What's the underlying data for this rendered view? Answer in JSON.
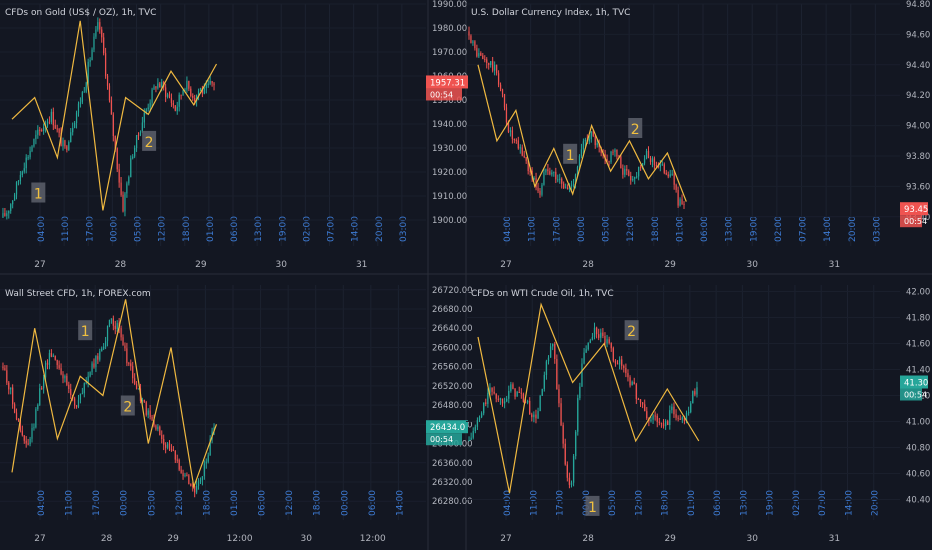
{
  "chart_data": [
    {
      "type": "candlestick",
      "title": "CFDs on Gold (US$ / OZ), 1h, TVC",
      "ylim": [
        1895,
        1990
      ],
      "y_ticks": [
        "1990.00",
        "1980.00",
        "1970.00",
        "1960.00",
        "1950.00",
        "1940.00",
        "1930.00",
        "1920.00",
        "1910.00",
        "1900.00"
      ],
      "time_ticks": [
        "04:00",
        "11:00",
        "17:00",
        "00:00",
        "05:00",
        "12:00",
        "18:00",
        "01:00",
        "06:00",
        "13:00",
        "19:00",
        "02:00",
        "07:00",
        "14:00",
        "20:00",
        "03:00"
      ],
      "date_ticks": [
        "27",
        "28",
        "29",
        "30",
        "31"
      ],
      "last_price": "1957.31",
      "countdown": "00:54",
      "last_color": "#ef5350",
      "wave_labels": [
        "1",
        "2"
      ],
      "start_value": 1901,
      "path_points": [
        1901,
        1904,
        1909,
        1915,
        1922,
        1926,
        1931,
        1935,
        1938,
        1941,
        1944,
        1939,
        1933,
        1929,
        1937,
        1943,
        1949,
        1956,
        1966,
        1975,
        1982,
        1969,
        1952,
        1936,
        1920,
        1905,
        1917,
        1928,
        1934,
        1941,
        1947,
        1952,
        1957,
        1956,
        1953,
        1950,
        1946,
        1952,
        1957,
        1954,
        1951,
        1955,
        1953,
        1956,
        1957
      ],
      "zigzag": [
        1942,
        1951,
        1926,
        1983,
        1904,
        1951,
        1944,
        1962,
        1948,
        1965
      ],
      "data_end_fraction": 0.5
    },
    {
      "type": "candlestick",
      "title": "U.S. Dollar Currency Index, 1h, TVC",
      "ylim": [
        93.3,
        94.8
      ],
      "y_ticks": [
        "94.80",
        "94.60",
        "94.40",
        "94.20",
        "94.00",
        "93.80",
        "93.60",
        "93.40"
      ],
      "time_ticks": [
        "04:00",
        "11:00",
        "17:00",
        "00:00",
        "05:00",
        "12:00",
        "18:00",
        "01:00",
        "06:00",
        "13:00",
        "19:00",
        "02:00",
        "07:00",
        "14:00",
        "20:00",
        "03:00"
      ],
      "date_ticks": [
        "27",
        "28",
        "29",
        "30",
        "31"
      ],
      "last_price": "93.45",
      "countdown": "00:54",
      "last_color": "#ef5350",
      "wave_labels": [
        "1",
        "2"
      ],
      "start_value": 94.62,
      "path_points": [
        94.62,
        94.5,
        94.45,
        94.42,
        94.4,
        94.35,
        94.2,
        94.0,
        93.9,
        93.85,
        93.8,
        93.7,
        93.62,
        93.55,
        93.75,
        93.7,
        93.66,
        93.6,
        93.58,
        93.65,
        93.78,
        93.9,
        93.95,
        93.88,
        93.8,
        93.75,
        93.85,
        93.78,
        93.7,
        93.68,
        93.65,
        93.75,
        93.8,
        93.78,
        93.75,
        93.72,
        93.7,
        93.65,
        93.5,
        93.45
      ],
      "zigzag": [
        94.4,
        93.9,
        94.1,
        93.6,
        93.85,
        93.55,
        94.0,
        93.7,
        93.9,
        93.65,
        93.82,
        93.5
      ],
      "data_end_fraction": 0.5
    },
    {
      "type": "candlestick",
      "title": "Wall Street CFD, 1h, FOREX.com",
      "ylim": [
        26270,
        26730
      ],
      "y_ticks": [
        "26720.00",
        "26680.00",
        "26640.00",
        "26600.00",
        "26560.00",
        "26520.00",
        "26480.00",
        "26440.00",
        "26400.00",
        "26360.00",
        "26320.00",
        "26280.00"
      ],
      "time_ticks": [
        "04:00",
        "11:00",
        "17:00",
        "00:00",
        "05:00",
        "12:00",
        "18:00",
        "01:00",
        "06:00",
        "12:00",
        "18:00",
        "00:00",
        "06:00",
        "14:00"
      ],
      "date_ticks": [
        "27",
        "28",
        "29",
        "12:00",
        "30",
        "12:00"
      ],
      "last_price": "26434.0",
      "countdown": "00:54",
      "last_color": "#26a69a",
      "wave_labels": [
        "1",
        "2"
      ],
      "start_value": 26560,
      "path_points": [
        26560,
        26520,
        26470,
        26420,
        26390,
        26430,
        26500,
        26560,
        26590,
        26570,
        26540,
        26510,
        26480,
        26500,
        26540,
        26560,
        26590,
        26620,
        26660,
        26640,
        26600,
        26560,
        26520,
        26490,
        26460,
        26440,
        26420,
        26400,
        26380,
        26360,
        26340,
        26320,
        26300,
        26330,
        26380,
        26434
      ],
      "zigzag": [
        26340,
        26640,
        26410,
        26540,
        26500,
        26700,
        26400,
        26600,
        26310,
        26440
      ],
      "data_end_fraction": 0.5
    },
    {
      "type": "candlestick",
      "title": "CFDs on WTI Crude Oil, 1h, TVC",
      "ylim": [
        40.35,
        42.05
      ],
      "y_ticks": [
        "42.00",
        "41.80",
        "41.60",
        "41.40",
        "41.20",
        "41.00",
        "40.80",
        "40.60",
        "40.40"
      ],
      "time_ticks": [
        "04:00",
        "11:00",
        "17:00",
        "00:00",
        "05:00",
        "12:00",
        "18:00",
        "01:00",
        "06:00",
        "13:00",
        "19:00",
        "02:00",
        "07:00",
        "14:00",
        "20:00"
      ],
      "date_ticks": [
        "27",
        "28",
        "29",
        "30",
        "31"
      ],
      "last_price": "41.30",
      "countdown": "00:54",
      "last_color": "#26a69a",
      "wave_labels": [
        "1",
        "2"
      ],
      "start_value": 40.85,
      "path_points": [
        40.85,
        40.95,
        41.05,
        41.2,
        41.25,
        41.15,
        41.2,
        41.25,
        41.22,
        41.18,
        41.1,
        41.0,
        41.2,
        41.45,
        41.6,
        41.1,
        40.7,
        40.45,
        41.1,
        41.5,
        41.62,
        41.7,
        41.65,
        41.6,
        41.5,
        41.45,
        41.4,
        41.3,
        41.2,
        41.1,
        41.0,
        41.05,
        40.95,
        41.0,
        41.1,
        41.0,
        41.05,
        41.15,
        41.3
      ],
      "zigzag": [
        41.65,
        40.45,
        41.9,
        41.3,
        41.6,
        40.85,
        41.25,
        40.85
      ],
      "data_end_fraction": 0.53
    }
  ]
}
